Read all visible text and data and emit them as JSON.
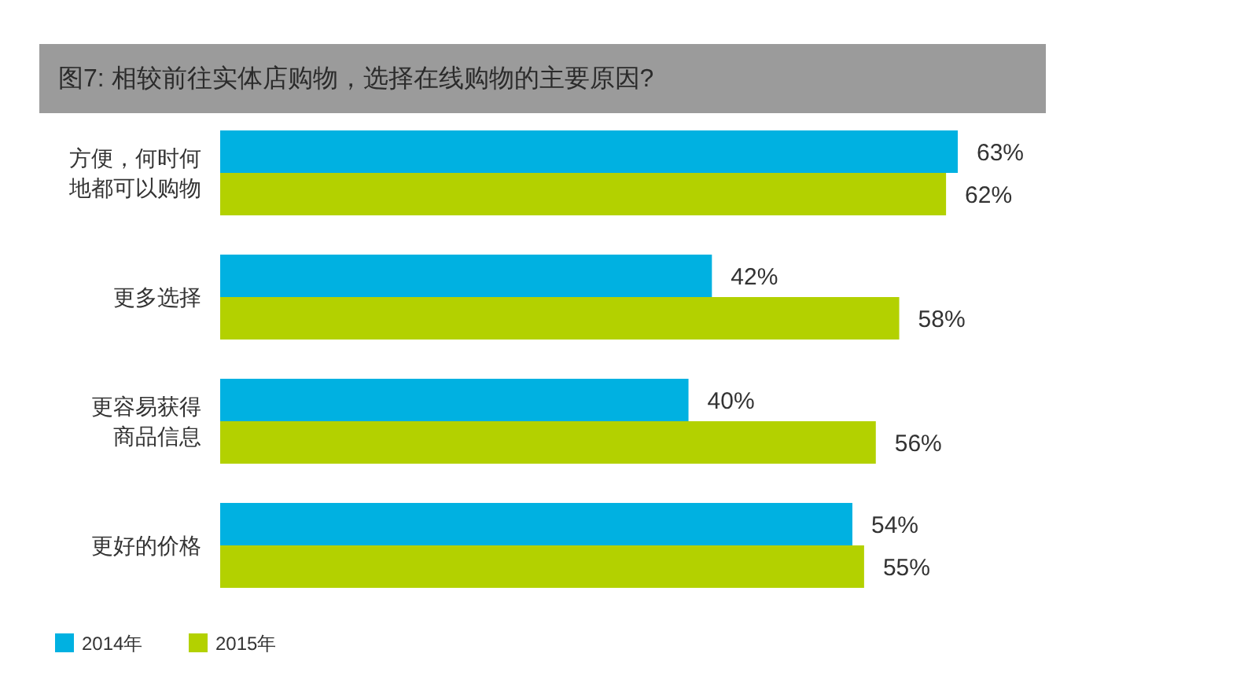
{
  "chart_data": {
    "type": "bar",
    "orientation": "horizontal",
    "title": "图7: 相较前往实体店购物，选择在线购物的主要原因?",
    "categories": [
      "方便，何时何地都可以购物",
      "更多选择",
      "更容易获得商品信息",
      "更好的价格"
    ],
    "series": [
      {
        "name": "2014年",
        "color": "#00b1e1",
        "values": [
          63,
          42,
          40,
          54
        ],
        "value_labels": [
          "63%",
          "42%",
          "40%",
          "54%"
        ]
      },
      {
        "name": "2015年",
        "color": "#b3d100",
        "values": [
          62,
          58,
          56,
          55
        ],
        "value_labels": [
          "62%",
          "58%",
          "56%",
          "55%"
        ]
      }
    ],
    "legend": "bottom left"
  }
}
